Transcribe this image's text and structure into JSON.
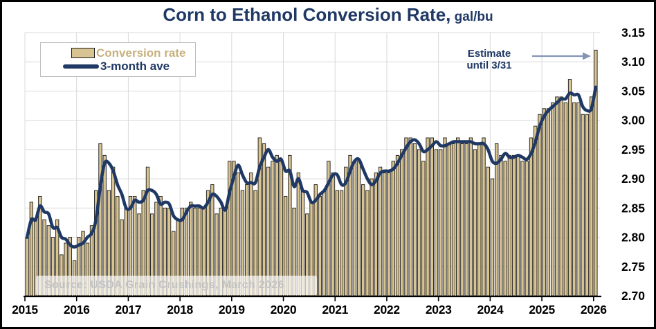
{
  "title": {
    "main": "Corn to Ethanol Conversion Rate,",
    "unit": " gal/bu"
  },
  "legend": {
    "bar_label": "Conversion rate",
    "line_label": "3-month ave"
  },
  "annotation": {
    "line1": "Estimate",
    "line2": "until 3/31"
  },
  "source": {
    "text": "Source: USDA Grain Crushings, March 2026"
  },
  "colors": {
    "navy": "#1F3864",
    "bar_fill": "#D8C493",
    "bar_stroke": "#1c1c1c",
    "legend_bar_text": "#C8B17E",
    "grid": "#D9D9D9",
    "axis": "#000000",
    "tick_label": "#000000",
    "arrow": "#8494B4",
    "source_text": "#c3c3c3"
  },
  "chart_data": {
    "type": "bar",
    "title": "Corn to Ethanol Conversion Rate, gal/bu",
    "xlabel": "",
    "ylabel": "gal/bu",
    "ylim": [
      2.7,
      3.15
    ],
    "y_ticks": [
      2.7,
      2.75,
      2.8,
      2.85,
      2.9,
      2.95,
      3.0,
      3.05,
      3.1,
      3.15
    ],
    "x_tick_labels": [
      "2015",
      "2016",
      "2017",
      "2018",
      "2019",
      "2020",
      "2021",
      "2022",
      "2023",
      "2024",
      "2025",
      "2026"
    ],
    "grid": true,
    "legend_position": "top-left",
    "start_month": "2015-01",
    "end_month": "2026-01",
    "last_point_note": "Estimate until 3/31",
    "series": [
      {
        "name": "Conversion rate",
        "type": "bar",
        "values": [
          2.8,
          2.86,
          2.83,
          2.87,
          2.83,
          2.82,
          2.8,
          2.83,
          2.77,
          2.79,
          2.8,
          2.76,
          2.8,
          2.81,
          2.79,
          2.82,
          2.88,
          2.96,
          2.94,
          2.88,
          2.92,
          2.87,
          2.83,
          2.85,
          2.87,
          2.87,
          2.84,
          2.88,
          2.92,
          2.84,
          2.86,
          2.87,
          2.85,
          2.85,
          2.81,
          2.83,
          2.85,
          2.85,
          2.86,
          2.85,
          2.85,
          2.85,
          2.88,
          2.89,
          2.84,
          2.85,
          2.85,
          2.93,
          2.93,
          2.91,
          2.88,
          2.89,
          2.91,
          2.88,
          2.97,
          2.96,
          2.92,
          2.93,
          2.94,
          2.93,
          2.87,
          2.94,
          2.85,
          2.91,
          2.88,
          2.84,
          2.86,
          2.89,
          2.87,
          2.88,
          2.93,
          2.91,
          2.88,
          2.88,
          2.92,
          2.94,
          2.93,
          2.93,
          2.89,
          2.88,
          2.9,
          2.91,
          2.92,
          2.91,
          2.91,
          2.93,
          2.94,
          2.95,
          2.97,
          2.97,
          2.96,
          2.95,
          2.93,
          2.97,
          2.97,
          2.95,
          2.95,
          2.97,
          2.96,
          2.96,
          2.97,
          2.96,
          2.96,
          2.97,
          2.95,
          2.96,
          2.97,
          2.92,
          2.9,
          2.96,
          2.94,
          2.93,
          2.94,
          2.94,
          2.94,
          2.93,
          2.93,
          2.97,
          2.99,
          3.01,
          3.02,
          3.02,
          3.03,
          3.04,
          3.04,
          3.03,
          3.07,
          3.03,
          3.03,
          3.01,
          3.01,
          3.04,
          3.12
        ]
      },
      {
        "name": "3-month ave",
        "type": "line",
        "derived_from": "3-month trailing average of Conversion rate"
      }
    ]
  }
}
